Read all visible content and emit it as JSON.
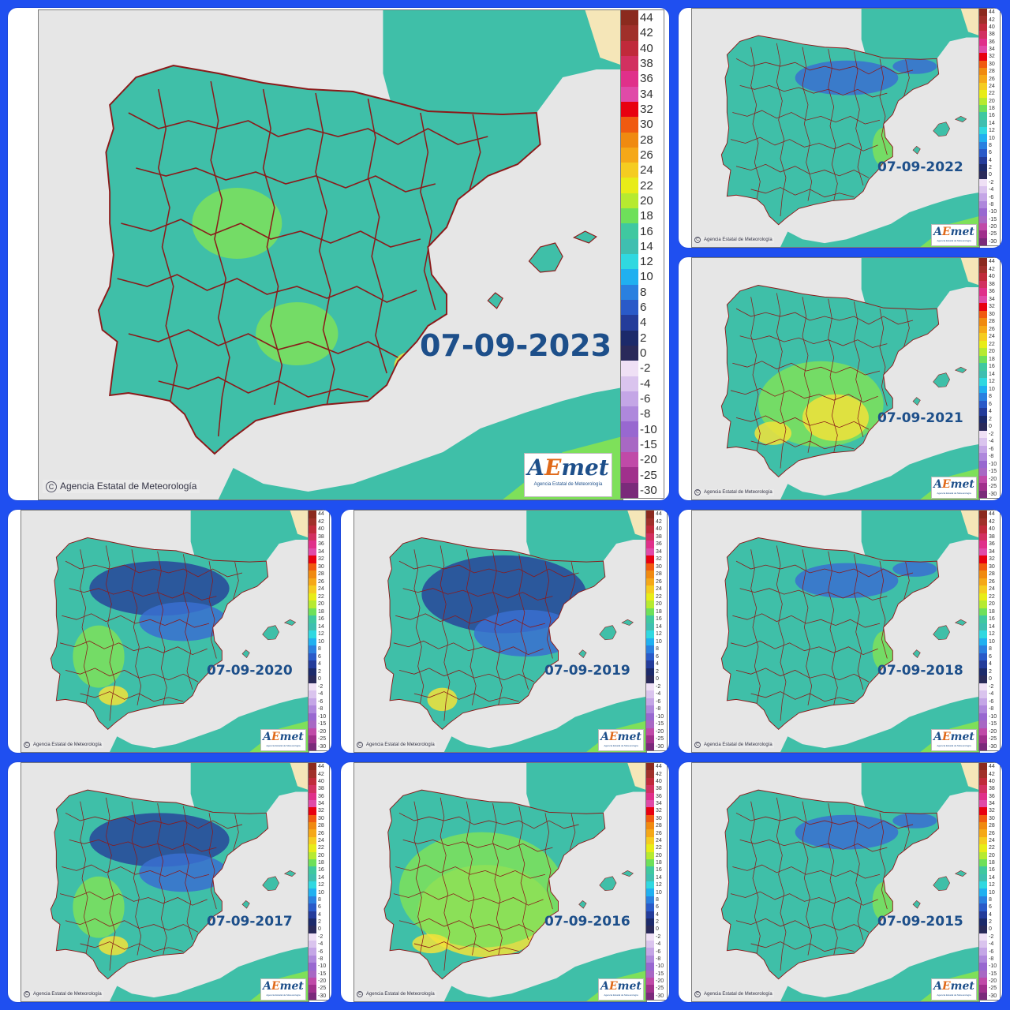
{
  "colors": {
    "background": "#1f4ff0",
    "sea": "#e6e6e6",
    "land_base": "#3fbfa8",
    "land_warm": "#7ee05a",
    "land_hot": "#f2e23a",
    "land_cold": "#3a6fd0",
    "land_very_cold": "#28459a",
    "borders": "#8b1a1a",
    "date_text": "#1d4f8a"
  },
  "credit": "Agencia Estatal de Meteorología",
  "logo": {
    "text_a": "A",
    "text_e": "E",
    "text_rest": "met",
    "sub": "Agencia Estatal de Meteorología"
  },
  "legend": {
    "labels": [
      "44",
      "42",
      "40",
      "38",
      "36",
      "34",
      "32",
      "30",
      "28",
      "26",
      "24",
      "22",
      "20",
      "18",
      "16",
      "14",
      "12",
      "10",
      "8",
      "6",
      "4",
      "2",
      "0",
      "-2",
      "-4",
      "-6",
      "-8",
      "-10",
      "-15",
      "-20",
      "-25",
      "-30"
    ],
    "colors": [
      "#8b2a1e",
      "#a0302a",
      "#c02a3a",
      "#d23060",
      "#e0308a",
      "#e04aa8",
      "#e80010",
      "#f05a10",
      "#f08a10",
      "#f5a818",
      "#f5cc20",
      "#e8ec18",
      "#b6ea30",
      "#6ee05a",
      "#3fc8a0",
      "#3fbfb0",
      "#30d8e0",
      "#20b0f0",
      "#2a80e0",
      "#2a5ac8",
      "#243c9a",
      "#1c2a6a",
      "#2a2a5a",
      "#efe0f5",
      "#dac4ee",
      "#c4a6e6",
      "#ae88dc",
      "#9868d0",
      "#a868c4",
      "#c04aa8",
      "#a0308c",
      "#7a2a7a"
    ]
  },
  "panels": [
    {
      "id": "2023",
      "date": "07-09-2023",
      "variant": "cool-green"
    },
    {
      "id": "2022",
      "date": "07-09-2022",
      "variant": "cool-north"
    },
    {
      "id": "2021",
      "date": "07-09-2021",
      "variant": "warm"
    },
    {
      "id": "2020",
      "date": "07-09-2020",
      "variant": "cold"
    },
    {
      "id": "2019",
      "date": "07-09-2019",
      "variant": "very-cold"
    },
    {
      "id": "2018",
      "date": "07-09-2018",
      "variant": "cool-north"
    },
    {
      "id": "2017",
      "date": "07-09-2017",
      "variant": "cold"
    },
    {
      "id": "2016",
      "date": "07-09-2016",
      "variant": "hot"
    },
    {
      "id": "2015",
      "date": "07-09-2015",
      "variant": "cool-north"
    }
  ]
}
